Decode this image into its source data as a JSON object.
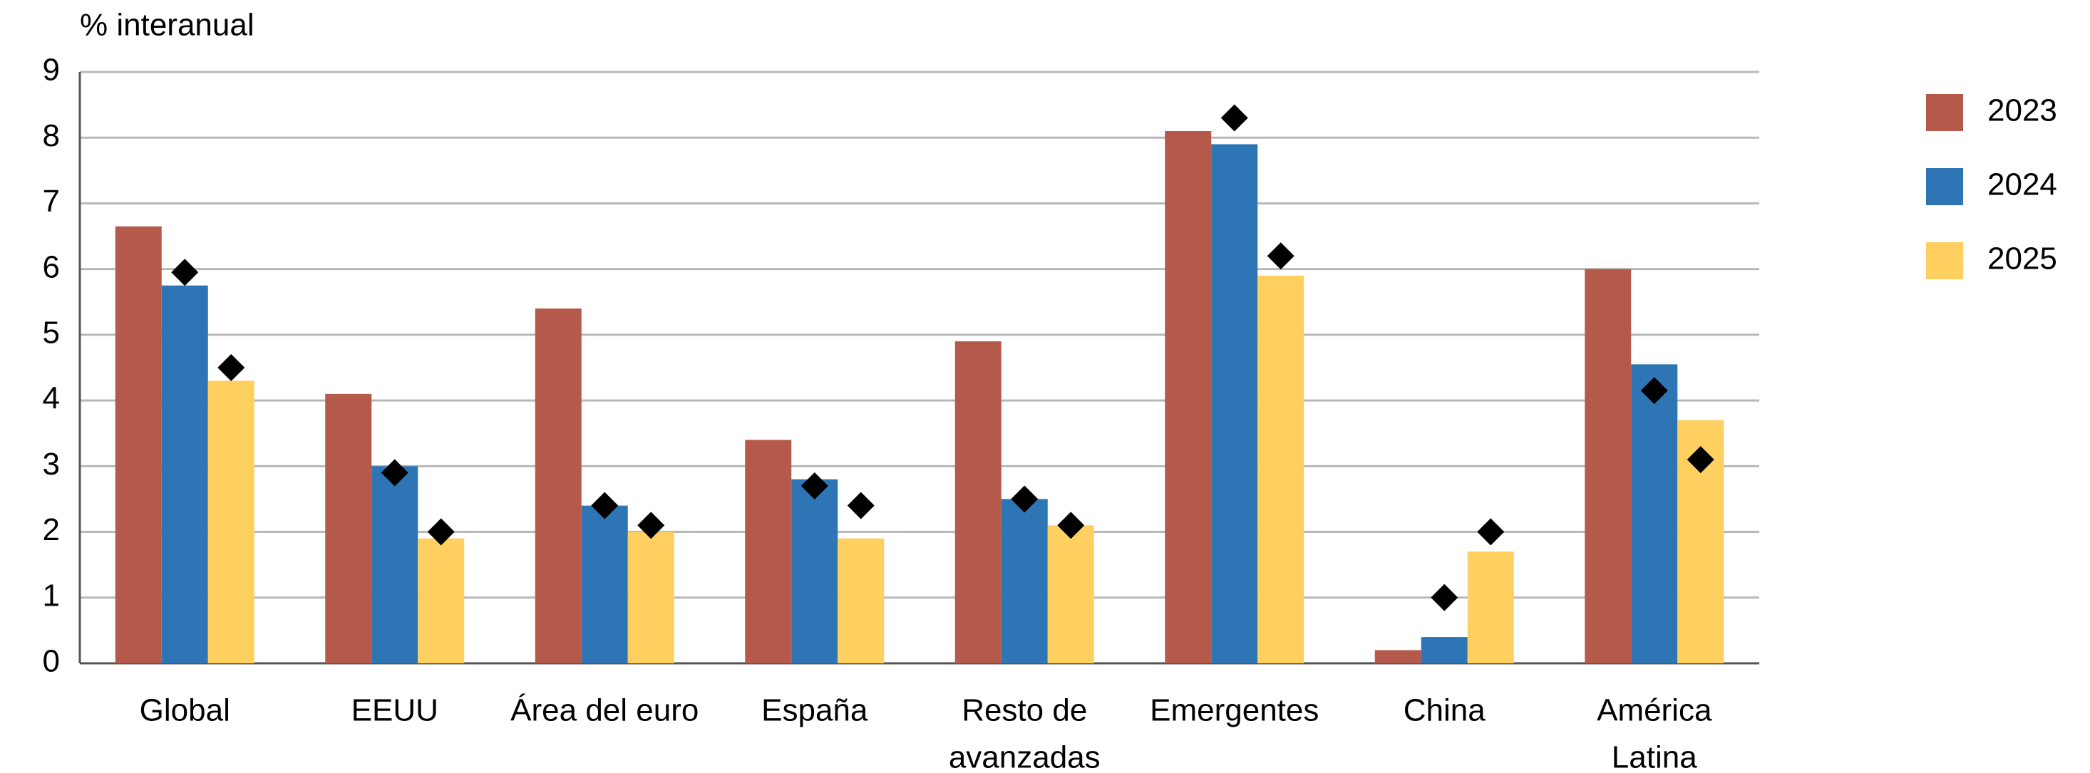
{
  "chart_data": {
    "type": "bar",
    "y_label": "% interanual",
    "categories": [
      [
        "Global"
      ],
      [
        "EEUU"
      ],
      [
        "Área del euro"
      ],
      [
        "España"
      ],
      [
        "Resto de",
        "avanzadas"
      ],
      [
        "Emergentes"
      ],
      [
        "China"
      ],
      [
        "América",
        "Latina"
      ]
    ],
    "series": [
      {
        "name": "2023",
        "color": "#b55a4b",
        "values": [
          6.65,
          4.1,
          5.4,
          3.4,
          4.9,
          8.1,
          0.2,
          6.0
        ]
      },
      {
        "name": "2024",
        "color": "#2e75b6",
        "values": [
          5.75,
          3.0,
          2.4,
          2.8,
          2.5,
          7.9,
          0.4,
          4.55
        ],
        "markers": [
          5.95,
          2.9,
          2.4,
          2.7,
          2.5,
          8.3,
          1.0,
          4.15
        ]
      },
      {
        "name": "2025",
        "color": "#ffd060",
        "values": [
          4.3,
          1.9,
          2.0,
          1.9,
          2.1,
          5.9,
          1.7,
          3.7
        ],
        "markers": [
          4.5,
          2.0,
          2.1,
          2.4,
          2.1,
          6.2,
          2.0,
          3.1
        ]
      }
    ],
    "marker_color": "#000000",
    "ylim": [
      0,
      9
    ],
    "yticks": [
      0,
      1,
      2,
      3,
      4,
      5,
      6,
      7,
      8,
      9
    ],
    "grid": true,
    "legend": "right"
  }
}
